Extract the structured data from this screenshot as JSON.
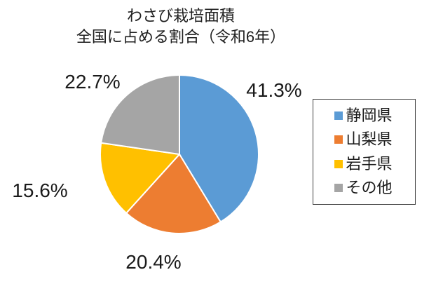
{
  "chart": {
    "title_line1": "わさび栽培面積",
    "title_line2": "全国に占める割合（令和6年）"
  },
  "chart_data": {
    "type": "pie",
    "title": "わさび栽培面積 全国に占める割合（令和6年）",
    "categories": [
      "静岡県",
      "山梨県",
      "岩手県",
      "その他"
    ],
    "values": [
      41.3,
      20.4,
      15.6,
      22.7
    ],
    "unit": "%",
    "start_angle_deg": 0,
    "direction": "clockwise",
    "legend_position": "right",
    "slices": [
      {
        "name": "静岡県",
        "value": 41.3,
        "label": "41.3%",
        "color": "#5B9BD5"
      },
      {
        "name": "山梨県",
        "value": 20.4,
        "label": "20.4%",
        "color": "#ED7D31"
      },
      {
        "name": "岩手県",
        "value": 15.6,
        "label": "15.6%",
        "color": "#FFC000"
      },
      {
        "name": "その他",
        "value": 22.7,
        "label": "22.7%",
        "color": "#A5A5A5"
      }
    ]
  },
  "legend": {
    "items": [
      {
        "label": "静岡県",
        "color": "#5B9BD5"
      },
      {
        "label": "山梨県",
        "color": "#ED7D31"
      },
      {
        "label": "岩手県",
        "color": "#FFC000"
      },
      {
        "label": "その他",
        "color": "#A5A5A5"
      }
    ]
  }
}
